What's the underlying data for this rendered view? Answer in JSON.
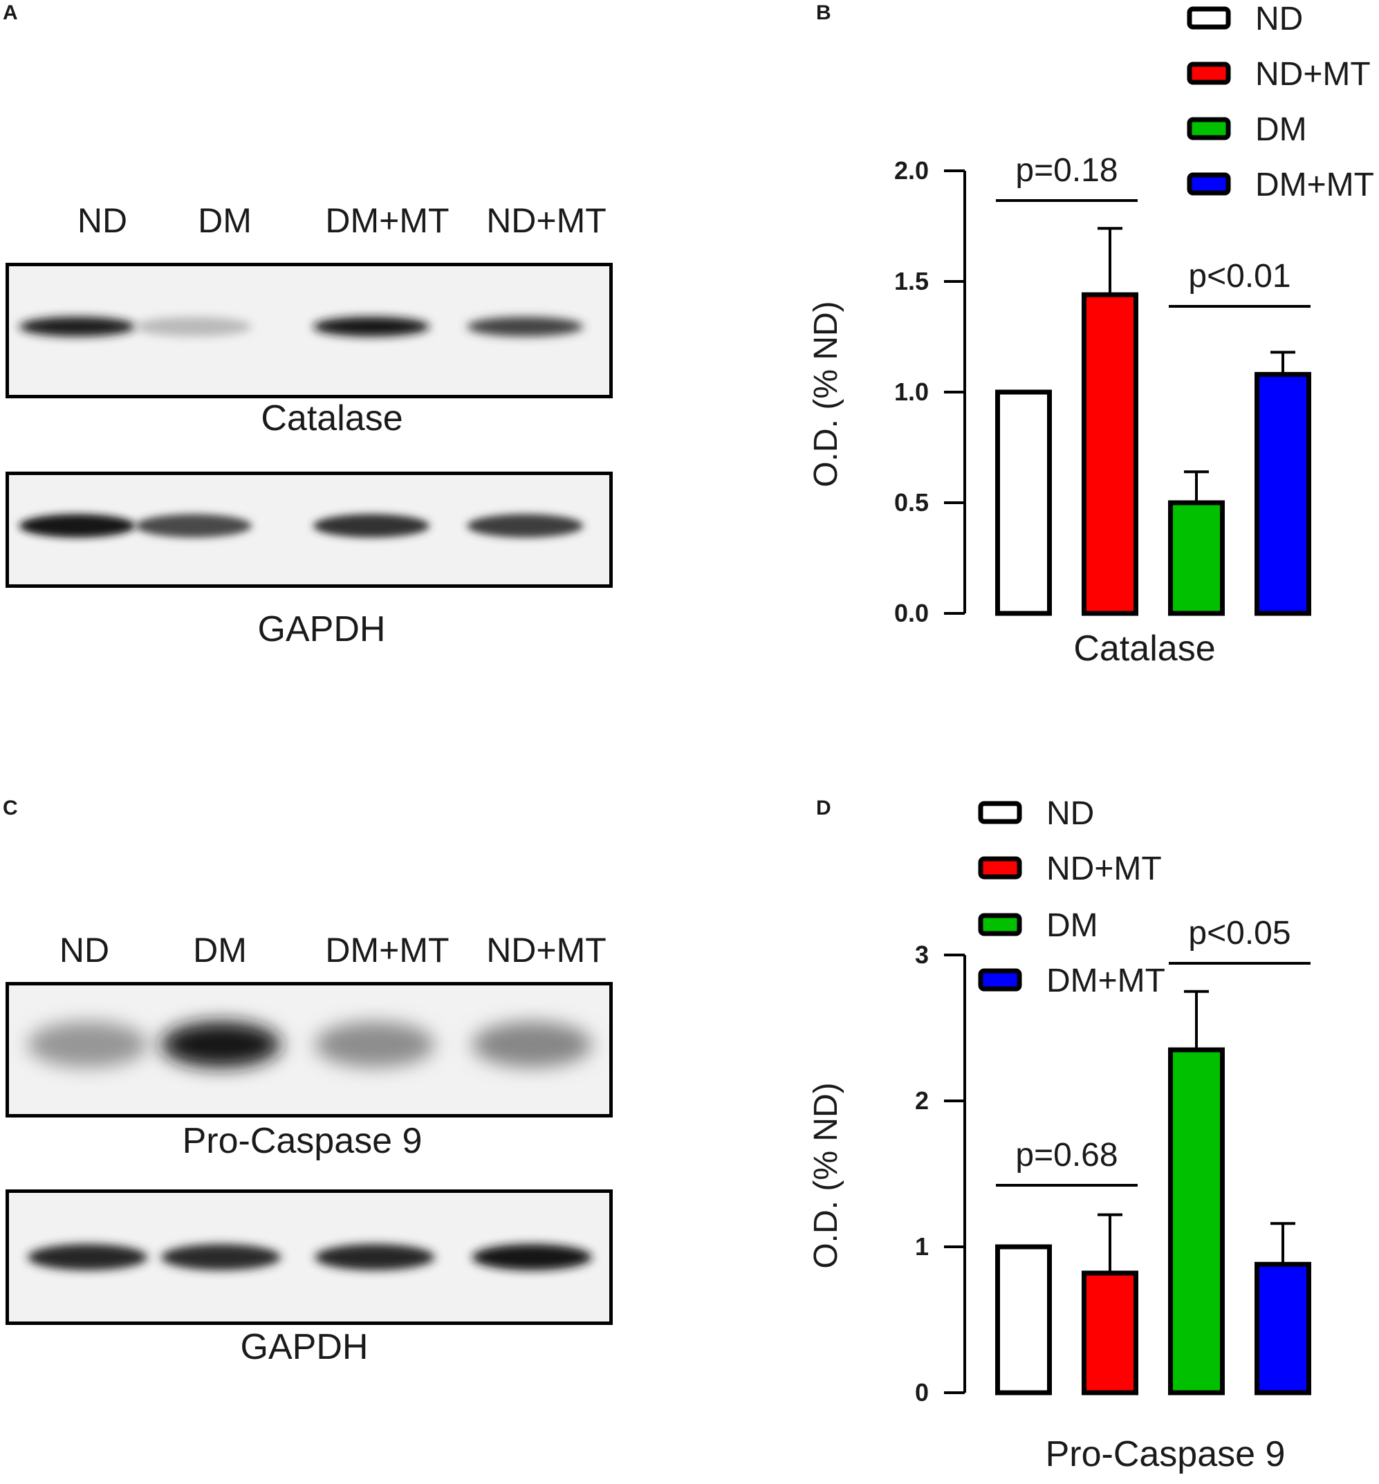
{
  "panels": {
    "a": {
      "letter": "A"
    },
    "b": {
      "letter": "B"
    },
    "c": {
      "letter": "C"
    },
    "d": {
      "letter": "D"
    }
  },
  "blot_a": {
    "lanes": [
      "ND",
      "DM",
      "DM+MT",
      "ND+MT"
    ],
    "top_caption": "Catalase",
    "bottom_caption": "GAPDH",
    "top_band_intensity": [
      0.92,
      0.22,
      0.95,
      0.75
    ],
    "bottom_band_intensity": [
      0.95,
      0.72,
      0.82,
      0.78
    ]
  },
  "blot_c": {
    "lanes": [
      "ND",
      "DM",
      "DM+MT",
      "ND+MT"
    ],
    "top_caption": "Pro-Caspase 9",
    "bottom_caption": "GAPDH",
    "top_band_intensity": [
      0.38,
      0.95,
      0.42,
      0.45
    ],
    "bottom_band_intensity": [
      0.88,
      0.85,
      0.88,
      0.95
    ]
  },
  "chart_data": [
    {
      "type": "bar",
      "panel": "B",
      "categories": [
        "ND",
        "ND+MT",
        "DM",
        "DM+MT"
      ],
      "values": [
        1.0,
        1.44,
        0.5,
        1.08
      ],
      "errors": [
        0,
        0.3,
        0.14,
        0.1
      ],
      "colors": [
        "#ffffff",
        "#ff0000",
        "#00c000",
        "#0000ff"
      ],
      "legend": [
        "ND",
        "ND+MT",
        "DM",
        "DM+MT"
      ],
      "legend_position": "top-right",
      "xlabel": "Catalase",
      "ylabel": "O.D. (% ND)",
      "ylim": [
        0,
        2.0
      ],
      "yticks": [
        "0.0",
        "0.5",
        "1.0",
        "1.5",
        "2.0"
      ],
      "annotations": [
        {
          "text": "p=0.18",
          "from": "ND",
          "to": "ND+MT"
        },
        {
          "text": "p<0.01",
          "from": "DM",
          "to": "DM+MT"
        }
      ]
    },
    {
      "type": "bar",
      "panel": "D",
      "categories": [
        "ND",
        "ND+MT",
        "DM",
        "DM+MT"
      ],
      "values": [
        1.0,
        0.82,
        2.35,
        0.88
      ],
      "errors": [
        0,
        0.4,
        0.4,
        0.28
      ],
      "colors": [
        "#ffffff",
        "#ff0000",
        "#00c000",
        "#0000ff"
      ],
      "legend": [
        "ND",
        "ND+MT",
        "DM",
        "DM+MT"
      ],
      "legend_position": "top-left",
      "xlabel": "Pro-Caspase 9",
      "ylabel": "O.D. (% ND)",
      "ylim": [
        0,
        3
      ],
      "yticks": [
        "0",
        "1",
        "2",
        "3"
      ],
      "annotations": [
        {
          "text": "p=0.68",
          "from": "ND",
          "to": "ND+MT"
        },
        {
          "text": "p<0.05",
          "from": "DM",
          "to": "DM+MT"
        }
      ]
    }
  ]
}
